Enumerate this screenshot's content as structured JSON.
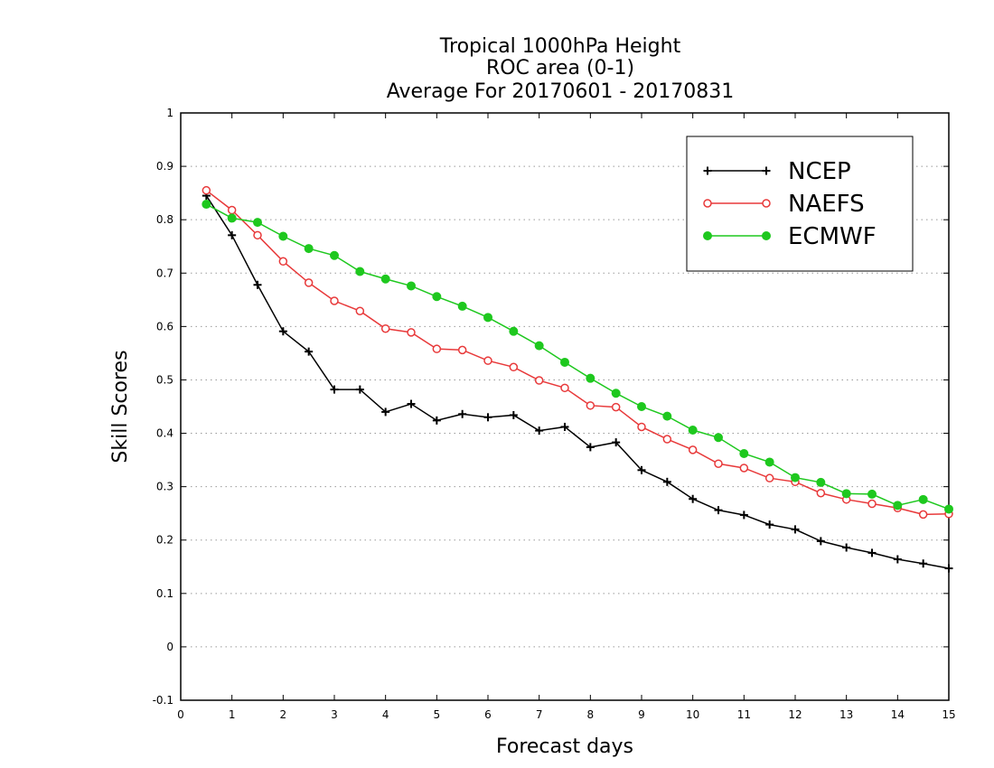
{
  "chart_data": {
    "type": "line",
    "title": [
      "Tropical 1000hPa Height",
      "ROC area (0-1)",
      "Average For 20170601 - 20170831"
    ],
    "xlabel": "Forecast days",
    "ylabel": "Skill Scores",
    "xlim": [
      0,
      15
    ],
    "ylim": [
      -0.1,
      1
    ],
    "xticks": [
      "0",
      "1",
      "2",
      "3",
      "4",
      "5",
      "6",
      "7",
      "8",
      "9",
      "10",
      "11",
      "12",
      "13",
      "14",
      "15"
    ],
    "yticks": [
      "-0.1",
      "0",
      "0.1",
      "0.2",
      "0.3",
      "0.4",
      "0.5",
      "0.6",
      "0.7",
      "0.8",
      "0.9",
      "1"
    ],
    "grid": "horizontal dotted",
    "legend_position": "top-right",
    "x": [
      0.5,
      1,
      1.5,
      2,
      2.5,
      3,
      3.5,
      4,
      4.5,
      5,
      5.5,
      6,
      6.5,
      7,
      7.5,
      8,
      8.5,
      9,
      9.5,
      10,
      10.5,
      11,
      11.5,
      12,
      12.5,
      13,
      13.5,
      14,
      14.5,
      15
    ],
    "series": [
      {
        "name": "NCEP",
        "color": "#000000",
        "marker": "plus",
        "values": [
          0.845,
          0.771,
          0.678,
          0.591,
          0.553,
          0.482,
          0.482,
          0.44,
          0.455,
          0.424,
          0.436,
          0.43,
          0.434,
          0.405,
          0.412,
          0.374,
          0.383,
          0.331,
          0.309,
          0.277,
          0.256,
          0.247,
          0.229,
          0.22,
          0.198,
          0.186,
          0.176,
          0.164,
          0.156,
          0.147
        ]
      },
      {
        "name": "NAEFS",
        "color": "#e8393a",
        "marker": "open-circle",
        "values": [
          0.855,
          0.818,
          0.771,
          0.722,
          0.682,
          0.648,
          0.629,
          0.596,
          0.589,
          0.558,
          0.556,
          0.536,
          0.524,
          0.499,
          0.485,
          0.452,
          0.449,
          0.412,
          0.389,
          0.369,
          0.343,
          0.335,
          0.316,
          0.309,
          0.288,
          0.276,
          0.268,
          0.26,
          0.248,
          0.249
        ]
      },
      {
        "name": "ECMWF",
        "color": "#1ec81e",
        "marker": "filled-circle",
        "values": [
          0.829,
          0.803,
          0.795,
          0.769,
          0.746,
          0.733,
          0.703,
          0.689,
          0.676,
          0.656,
          0.638,
          0.617,
          0.591,
          0.564,
          0.533,
          0.503,
          0.475,
          0.45,
          0.432,
          0.406,
          0.392,
          0.362,
          0.346,
          0.317,
          0.308,
          0.287,
          0.286,
          0.265,
          0.276,
          0.258
        ]
      }
    ]
  }
}
